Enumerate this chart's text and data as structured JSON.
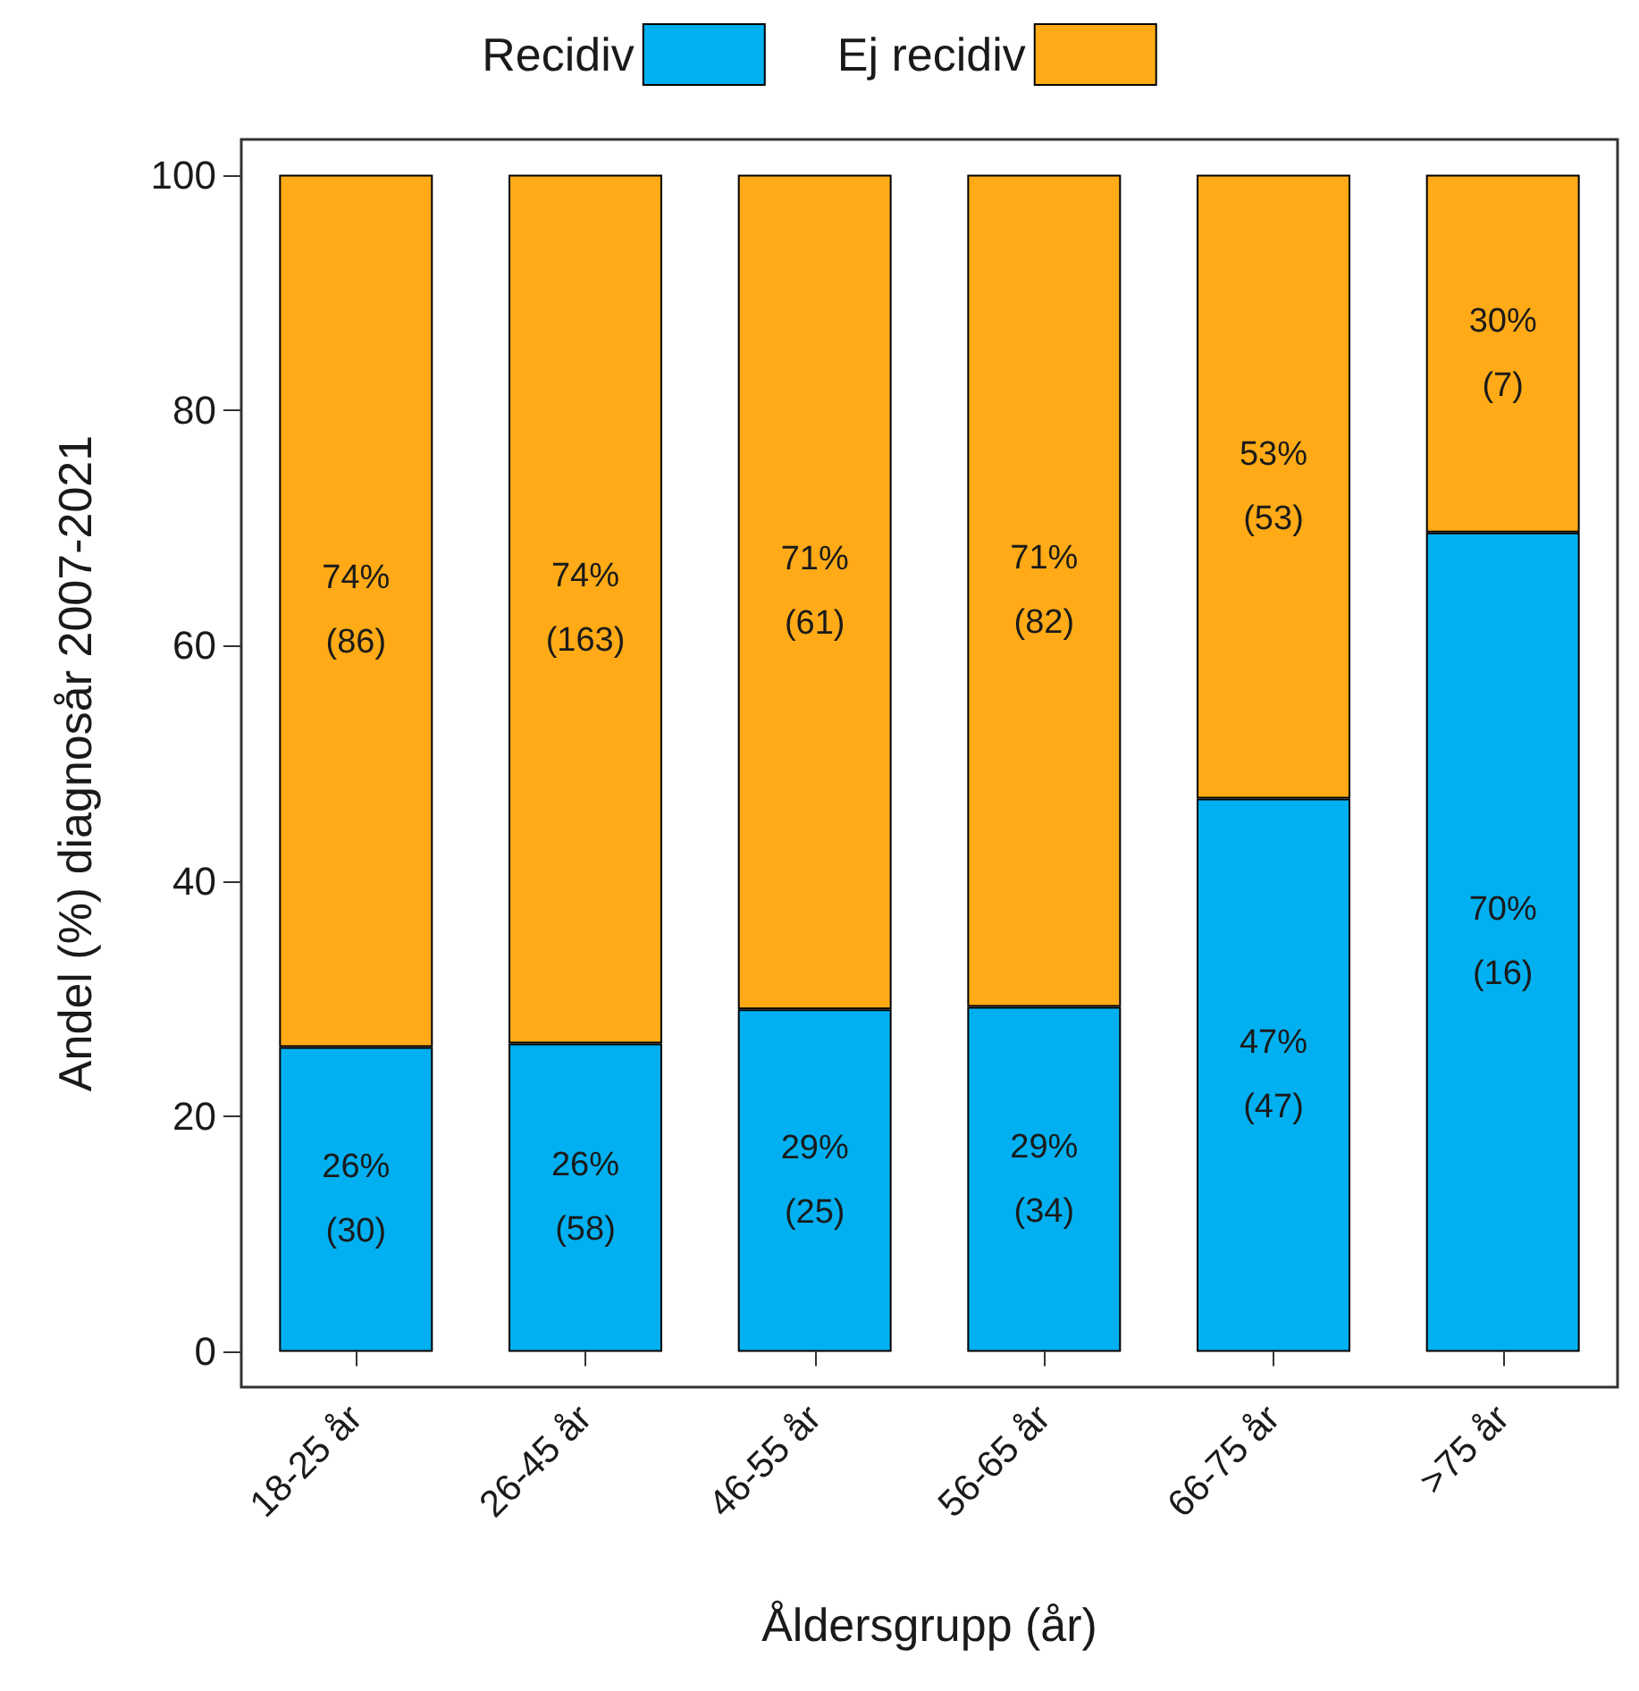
{
  "chart_data": {
    "type": "bar",
    "stacked": true,
    "xlabel": "Åldersgrupp (år)",
    "ylabel": "Andel (%) diagnosår 2007-2021",
    "categories": [
      "18-25 år",
      "26-45 år",
      "46-55 år",
      "56-65 år",
      "66-75 år",
      ">75 år"
    ],
    "series": [
      {
        "name": "Recidiv",
        "color": "#00b0f0",
        "values": [
          25.9,
          26.2,
          29.1,
          29.3,
          47,
          69.6
        ],
        "value_labels": [
          "26%\n(30)",
          "26%\n(58)",
          "29%\n(25)",
          "29%\n(34)",
          "47%\n(47)",
          "70%\n(16)"
        ]
      },
      {
        "name": "Ej recidiv",
        "color": "#ffaa16",
        "values": [
          74.1,
          73.8,
          70.9,
          70.7,
          53,
          30.4
        ],
        "value_labels": [
          "74%\n(86)",
          "74%\n(163)",
          "71%\n(61)",
          "71%\n(82)",
          "53%\n(53)",
          "30%\n(7)"
        ]
      }
    ],
    "ylim": [
      -3,
      103
    ],
    "yticks": [
      0,
      20,
      40,
      60,
      80,
      100
    ],
    "grid": false,
    "legend": "top"
  }
}
